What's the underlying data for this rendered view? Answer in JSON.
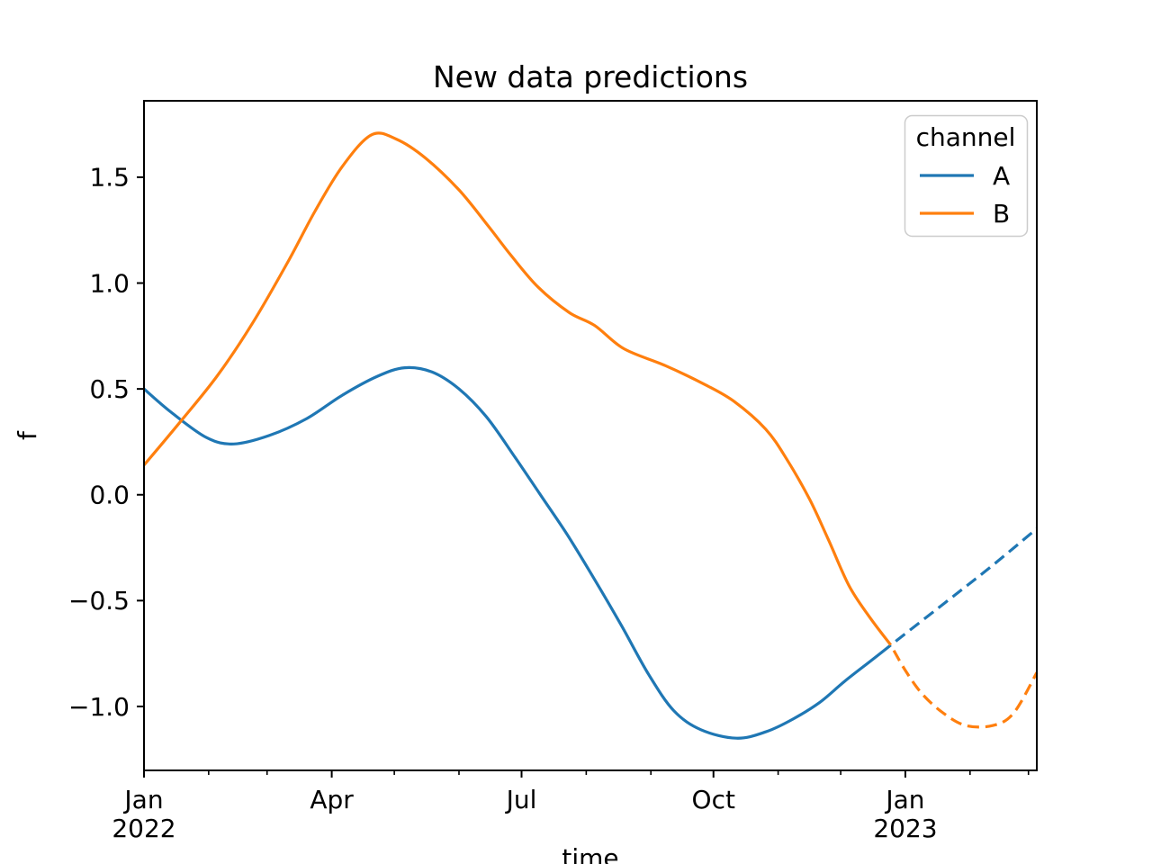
{
  "figure": {
    "title": "New data predictions"
  },
  "chart_data": {
    "type": "line",
    "title": "New data predictions",
    "xlabel": "time",
    "ylabel": "f",
    "x_unit": "days since 2022-01-01",
    "xlim": [
      0,
      428
    ],
    "ylim": [
      -1.302,
      1.861
    ],
    "grid": false,
    "colors": {
      "channel_A": "#1f77b4",
      "channel_B": "#ff7f0e",
      "spine": "#000000",
      "legend_border": "#cccccc"
    },
    "legend": {
      "title": "channel",
      "position": "upper right",
      "entries": [
        {
          "label": "A",
          "color": "#1f77b4"
        },
        {
          "label": "B",
          "color": "#ff7f0e"
        }
      ]
    },
    "x_ticks": {
      "major": [
        {
          "day": 0,
          "line1": "Jan",
          "line2": "2022"
        },
        {
          "day": 90,
          "line1": "Apr",
          "line2": ""
        },
        {
          "day": 181,
          "line1": "Jul",
          "line2": ""
        },
        {
          "day": 273,
          "line1": "Oct",
          "line2": ""
        },
        {
          "day": 365,
          "line1": "Jan",
          "line2": "2023"
        }
      ],
      "minor_days": [
        31,
        59,
        120,
        151,
        212,
        243,
        304,
        334,
        396,
        424
      ]
    },
    "y_ticks": [
      {
        "value": 1.5,
        "label": "1.5"
      },
      {
        "value": 1.0,
        "label": "1.0"
      },
      {
        "value": 0.5,
        "label": "0.5"
      },
      {
        "value": 0.0,
        "label": "0.0"
      },
      {
        "value": -0.5,
        "label": "−0.5"
      },
      {
        "value": -1.0,
        "label": "−1.0"
      }
    ],
    "series": [
      {
        "name": "A",
        "channel": "A",
        "color": "#1f77b4",
        "style": "solid",
        "points": [
          [
            0,
            0.5
          ],
          [
            13,
            0.39
          ],
          [
            30,
            0.27
          ],
          [
            43,
            0.24
          ],
          [
            60,
            0.28
          ],
          [
            78,
            0.36
          ],
          [
            95,
            0.47
          ],
          [
            112,
            0.56
          ],
          [
            125,
            0.6
          ],
          [
            138,
            0.58
          ],
          [
            151,
            0.5
          ],
          [
            164,
            0.37
          ],
          [
            177,
            0.19
          ],
          [
            190,
            0.0
          ],
          [
            203,
            -0.19
          ],
          [
            216,
            -0.4
          ],
          [
            229,
            -0.62
          ],
          [
            242,
            -0.85
          ],
          [
            254,
            -1.02
          ],
          [
            267,
            -1.11
          ],
          [
            284,
            -1.15
          ],
          [
            298,
            -1.12
          ],
          [
            311,
            -1.06
          ],
          [
            324,
            -0.98
          ],
          [
            336,
            -0.88
          ],
          [
            349,
            -0.78
          ],
          [
            358,
            -0.71
          ]
        ]
      },
      {
        "name": "A-prediction",
        "channel": "A",
        "color": "#1f77b4",
        "style": "dashed",
        "points": [
          [
            358,
            -0.71
          ],
          [
            384,
            -0.51
          ],
          [
            406,
            -0.34
          ],
          [
            428,
            -0.16
          ]
        ]
      },
      {
        "name": "B",
        "channel": "B",
        "color": "#ff7f0e",
        "style": "solid",
        "points": [
          [
            0,
            0.14
          ],
          [
            17,
            0.34
          ],
          [
            35,
            0.56
          ],
          [
            52,
            0.81
          ],
          [
            69,
            1.1
          ],
          [
            82,
            1.34
          ],
          [
            95,
            1.55
          ],
          [
            109,
            1.7
          ],
          [
            121,
            1.68
          ],
          [
            135,
            1.59
          ],
          [
            151,
            1.44
          ],
          [
            165,
            1.27
          ],
          [
            176,
            1.13
          ],
          [
            189,
            0.98
          ],
          [
            204,
            0.86
          ],
          [
            216,
            0.8
          ],
          [
            230,
            0.69
          ],
          [
            250,
            0.61
          ],
          [
            269,
            0.52
          ],
          [
            283,
            0.44
          ],
          [
            298,
            0.31
          ],
          [
            308,
            0.17
          ],
          [
            319,
            -0.02
          ],
          [
            328,
            -0.21
          ],
          [
            338,
            -0.43
          ],
          [
            348,
            -0.58
          ],
          [
            358,
            -0.71
          ]
        ]
      },
      {
        "name": "B-prediction",
        "channel": "B",
        "color": "#ff7f0e",
        "style": "dashed",
        "points": [
          [
            358,
            -0.71
          ],
          [
            365,
            -0.83
          ],
          [
            373,
            -0.94
          ],
          [
            383,
            -1.03
          ],
          [
            394,
            -1.09
          ],
          [
            407,
            -1.09
          ],
          [
            417,
            -1.03
          ],
          [
            428,
            -0.84
          ]
        ]
      }
    ]
  }
}
